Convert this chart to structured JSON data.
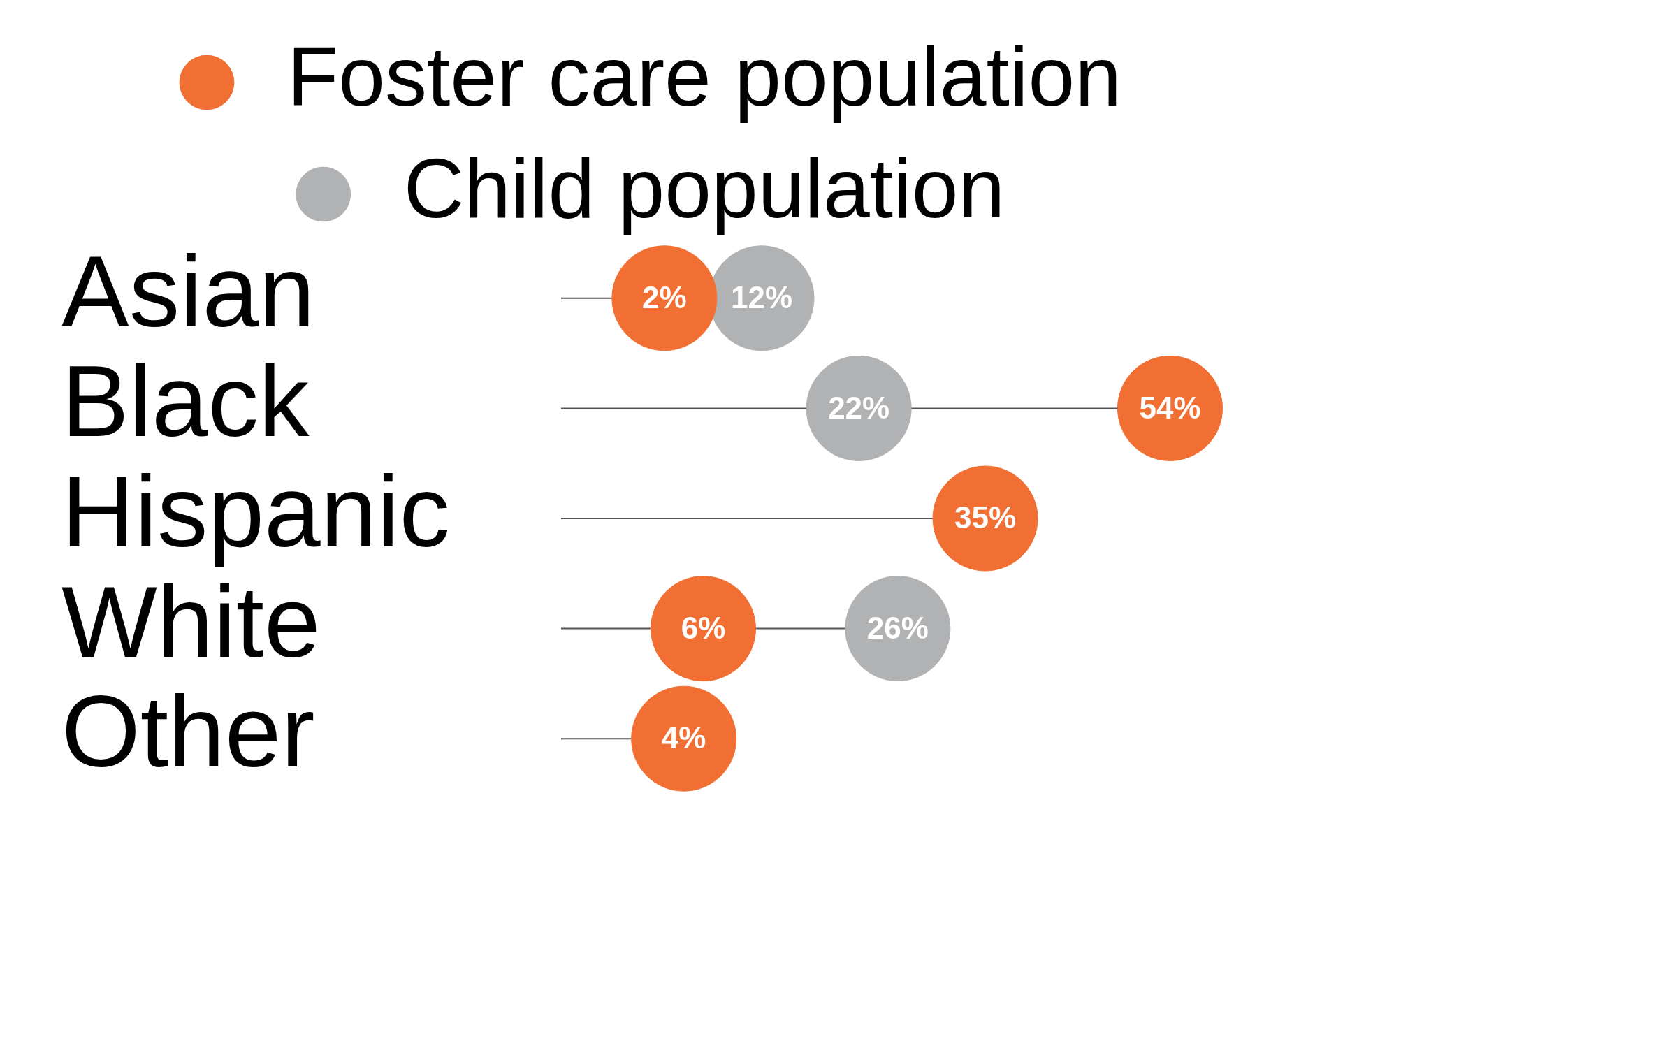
{
  "chart_data": {
    "type": "scatter",
    "orientation": "horizontal",
    "categories": [
      "Asian",
      "Black",
      "Hispanic",
      "White",
      "Other"
    ],
    "series": [
      {
        "name": "Foster care population",
        "color": "#f26f33",
        "values": [
          2,
          54,
          35,
          6,
          4
        ],
        "value_labels": [
          "2%",
          "54%",
          "35%",
          "6%",
          "4%"
        ]
      },
      {
        "name": "Child population",
        "color": "#b1b2b4",
        "values": [
          12,
          22,
          null,
          26,
          null
        ],
        "value_labels": [
          "12%",
          "22%",
          null,
          "26%",
          null
        ]
      }
    ],
    "legend": "top",
    "tick_labels": "y",
    "marker": "circle"
  }
}
